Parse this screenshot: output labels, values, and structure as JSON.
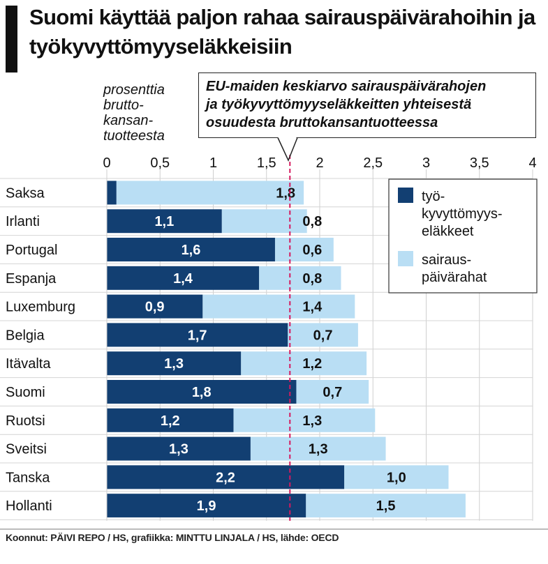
{
  "title": "Suomi käyttää paljon rahaa sairauspäivärahoihin ja työkyvyttömyyseläkkeisiin",
  "unit_label": "prosenttia brutto-kansan-tuotteesta",
  "unit_lines": [
    "prosenttia",
    "brutto-",
    "kansan-",
    "tuotteesta"
  ],
  "annotation": {
    "lines": [
      "EU-maiden keskiarvo sairauspäivärahojen",
      "ja työkyvyttömyyseläkkeitten yhteisestä",
      "osuudesta bruttokansantuotteessa"
    ],
    "reference_value": 1.72
  },
  "source": "Koonnut: PÄIVI REPO / HS, grafiikka: MINTTU LINJALA / HS, lähde: OECD",
  "colors": {
    "dark": "#123f72",
    "light": "#b9def4",
    "reference_line": "#d6195e"
  },
  "chart_data": {
    "type": "bar",
    "orientation": "horizontal",
    "stacked": true,
    "xlim": [
      0,
      4
    ],
    "x_ticks": [
      "0",
      "0,5",
      "1",
      "1,5",
      "2",
      "2,5",
      "3",
      "3,5",
      "4"
    ],
    "x_tick_values": [
      0,
      0.5,
      1,
      1.5,
      2,
      2.5,
      3,
      3.5,
      4
    ],
    "grid": true,
    "legend_position": "top-right",
    "categories": [
      "Saksa",
      "Irlanti",
      "Portugal",
      "Espanja",
      "Luxemburg",
      "Belgia",
      "Itävalta",
      "Suomi",
      "Ruotsi",
      "Sveitsi",
      "Tanska",
      "Hollanti"
    ],
    "series": [
      {
        "name": "työ-kyvyttömyys-eläkkeet",
        "legend_lines": [
          "työ-",
          "kyvyttömyys-",
          "eläkkeet"
        ],
        "color": "#123f72",
        "values": [
          0.09,
          1.08,
          1.58,
          1.43,
          0.9,
          1.7,
          1.26,
          1.78,
          1.19,
          1.35,
          2.23,
          1.87
        ],
        "labels": [
          "",
          "1,1",
          "1,6",
          "1,4",
          "0,9",
          "1,7",
          "1,3",
          "1,8",
          "1,2",
          "1,3",
          "2,2",
          "1,9"
        ]
      },
      {
        "name": "sairaus-päivärahat",
        "legend_lines": [
          "sairaus-",
          "päivärahat"
        ],
        "color": "#b9def4",
        "values": [
          1.76,
          0.8,
          0.55,
          0.77,
          1.43,
          0.66,
          1.18,
          0.68,
          1.33,
          1.27,
          0.98,
          1.5
        ],
        "labels": [
          "1,8",
          "0,8",
          "0,6",
          "0,8",
          "1,4",
          "0,7",
          "1,2",
          "0,7",
          "1,3",
          "1,3",
          "1,0",
          "1,5"
        ]
      }
    ]
  }
}
